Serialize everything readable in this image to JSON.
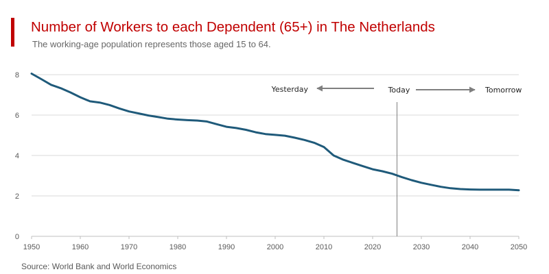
{
  "header": {
    "title": "Number of Workers to each Dependent (65+) in The Netherlands",
    "subtitle": "The working-age population represents those aged 15 to 64."
  },
  "footer": {
    "source": "Source: World Bank and World Economics"
  },
  "colors": {
    "accent": "#c00000",
    "line": "#1f5a7a",
    "grid": "#d9d9d9",
    "arrow": "#7f7f7f"
  },
  "chart_data": {
    "type": "line",
    "title": "Number of Workers to each Dependent (65+) in The Netherlands",
    "subtitle": "The working-age population represents those aged 15 to 64.",
    "xlabel": "",
    "ylabel": "",
    "xlim": [
      1950,
      2050
    ],
    "ylim": [
      0,
      8
    ],
    "x_ticks": [
      1950,
      1960,
      1970,
      1980,
      1990,
      2000,
      2010,
      2020,
      2030,
      2040,
      2050
    ],
    "y_ticks": [
      0,
      2,
      4,
      6,
      8
    ],
    "grid": "horizontal",
    "legend": "none",
    "series": [
      {
        "color": "#1f5a7a",
        "x": [
          1950,
          1952,
          1954,
          1956,
          1958,
          1960,
          1962,
          1964,
          1966,
          1968,
          1970,
          1972,
          1974,
          1976,
          1978,
          1980,
          1982,
          1984,
          1986,
          1988,
          1990,
          1992,
          1994,
          1996,
          1998,
          2000,
          2002,
          2004,
          2006,
          2008,
          2010,
          2012,
          2014,
          2016,
          2018,
          2020,
          2022,
          2024,
          2026,
          2028,
          2030,
          2032,
          2034,
          2036,
          2038,
          2040,
          2042,
          2044,
          2046,
          2048,
          2050
        ],
        "y": [
          8.05,
          7.78,
          7.5,
          7.33,
          7.12,
          6.88,
          6.68,
          6.62,
          6.5,
          6.33,
          6.18,
          6.08,
          5.98,
          5.9,
          5.82,
          5.78,
          5.75,
          5.73,
          5.68,
          5.55,
          5.42,
          5.36,
          5.27,
          5.15,
          5.06,
          5.02,
          4.98,
          4.88,
          4.77,
          4.63,
          4.42,
          4.0,
          3.79,
          3.63,
          3.47,
          3.32,
          3.22,
          3.1,
          2.93,
          2.78,
          2.65,
          2.55,
          2.45,
          2.38,
          2.34,
          2.32,
          2.31,
          2.31,
          2.31,
          2.31,
          2.28
        ]
      }
    ],
    "annotations": {
      "marker_year": 2025,
      "yesterday": "Yesterday",
      "today": "Today",
      "tomorrow": "Tomorrow"
    }
  }
}
